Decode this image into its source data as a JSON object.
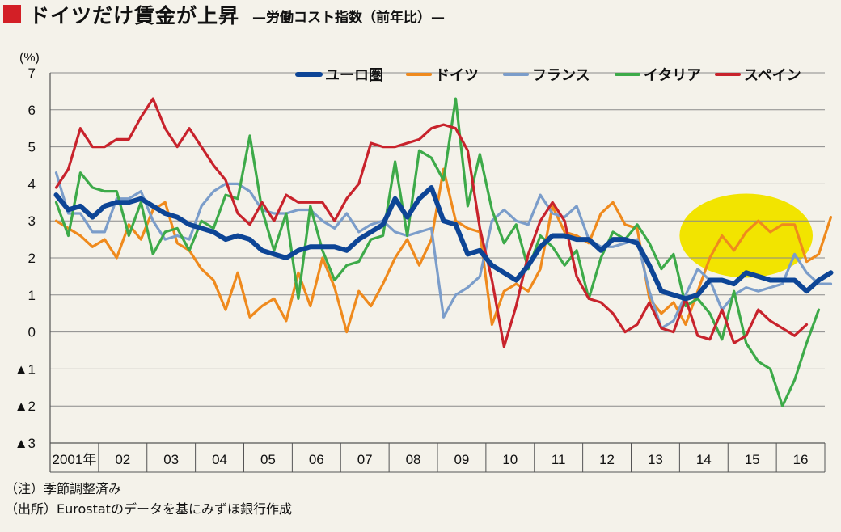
{
  "header": {
    "title": "ドイツだけ賃金が上昇",
    "subtitle": "—労働コスト指数（前年比）—"
  },
  "notes": [
    "（注）季節調整済み",
    "（出所）Eurostatのデータを基にみずほ銀行作成"
  ],
  "chart_data": {
    "type": "line",
    "y_unit_label": "(%)",
    "ylim": [
      -3,
      7
    ],
    "y_ticks": [
      {
        "value": 7,
        "label": "7"
      },
      {
        "value": 6,
        "label": "6"
      },
      {
        "value": 5,
        "label": "5"
      },
      {
        "value": 4,
        "label": "4"
      },
      {
        "value": 3,
        "label": "3"
      },
      {
        "value": 2,
        "label": "2"
      },
      {
        "value": 1,
        "label": "1"
      },
      {
        "value": 0,
        "label": "0"
      },
      {
        "value": -1,
        "label": "▲1"
      },
      {
        "value": -2,
        "label": "▲2"
      },
      {
        "value": -3,
        "label": "▲3"
      }
    ],
    "x_start": 2001,
    "points_per_year": 4,
    "x_tick_labels": [
      "2001年",
      "02",
      "03",
      "04",
      "05",
      "06",
      "07",
      "08",
      "09",
      "10",
      "11",
      "12",
      "13",
      "14",
      "15",
      "16"
    ],
    "legend_position": "top-right",
    "highlight_ellipse": {
      "x_from": 2014.0,
      "x_to": 2016.75,
      "y_center": 2.6,
      "color": "#f2e400"
    },
    "series": [
      {
        "name": "ユーロ圏",
        "color": "#0d4596",
        "values": [
          3.7,
          3.3,
          3.4,
          3.1,
          3.4,
          3.5,
          3.5,
          3.6,
          3.4,
          3.2,
          3.1,
          2.9,
          2.8,
          2.7,
          2.5,
          2.6,
          2.5,
          2.2,
          2.1,
          2.0,
          2.2,
          2.3,
          2.3,
          2.3,
          2.2,
          2.5,
          2.7,
          2.9,
          3.6,
          3.1,
          3.6,
          3.9,
          3.0,
          2.9,
          2.1,
          2.2,
          1.8,
          1.6,
          1.4,
          1.8,
          2.3,
          2.6,
          2.6,
          2.5,
          2.5,
          2.2,
          2.5,
          2.5,
          2.4,
          1.8,
          1.1,
          1.0,
          0.9,
          1.0,
          1.4,
          1.4,
          1.3,
          1.6,
          1.5,
          1.4,
          1.4,
          1.4,
          1.1,
          1.4,
          1.6
        ]
      },
      {
        "name": "ドイツ",
        "color": "#ef8a1d",
        "values": [
          3.0,
          2.8,
          2.6,
          2.3,
          2.5,
          2.0,
          2.9,
          2.5,
          3.3,
          3.5,
          2.4,
          2.2,
          1.7,
          1.4,
          0.6,
          1.6,
          0.4,
          0.7,
          0.9,
          0.3,
          1.6,
          0.7,
          2.0,
          1.2,
          0.0,
          1.1,
          0.7,
          1.3,
          2.0,
          2.5,
          1.8,
          2.5,
          4.4,
          3.0,
          2.8,
          2.7,
          0.2,
          1.1,
          1.3,
          1.1,
          1.7,
          3.4,
          2.7,
          2.6,
          2.4,
          3.2,
          3.5,
          2.9,
          2.8,
          0.9,
          0.5,
          0.8,
          0.2,
          1.1,
          2.0,
          2.6,
          2.2,
          2.7,
          3.0,
          2.7,
          2.9,
          2.9,
          1.9,
          2.1,
          3.1
        ]
      },
      {
        "name": "フランス",
        "color": "#7b9dca",
        "values": [
          4.3,
          3.2,
          3.2,
          2.7,
          2.7,
          3.6,
          3.6,
          3.8,
          3.0,
          2.5,
          2.6,
          2.5,
          3.4,
          3.8,
          4.0,
          4.0,
          3.8,
          3.3,
          3.2,
          3.2,
          3.3,
          3.3,
          3.0,
          2.8,
          3.2,
          2.7,
          2.9,
          3.0,
          2.7,
          2.6,
          2.7,
          2.8,
          0.4,
          1.0,
          1.2,
          1.5,
          3.0,
          3.3,
          3.0,
          2.9,
          3.7,
          3.2,
          3.1,
          3.4,
          2.5,
          2.3,
          2.3,
          2.4,
          2.5,
          1.1,
          0.1,
          0.3,
          1.0,
          1.7,
          1.4,
          0.6,
          1.0,
          1.2,
          1.1,
          1.2,
          1.3,
          2.1,
          1.6,
          1.3,
          1.3
        ]
      },
      {
        "name": "イタリア",
        "color": "#3daa49",
        "values": [
          3.5,
          2.6,
          4.3,
          3.9,
          3.8,
          3.8,
          2.6,
          3.5,
          2.1,
          2.7,
          2.8,
          2.2,
          3.0,
          2.8,
          3.7,
          3.6,
          5.3,
          3.3,
          2.2,
          3.2,
          0.9,
          3.4,
          2.2,
          1.4,
          1.8,
          1.9,
          2.5,
          2.6,
          4.6,
          2.6,
          4.9,
          4.7,
          4.1,
          6.3,
          3.4,
          4.8,
          3.3,
          2.4,
          2.9,
          1.7,
          2.6,
          2.3,
          1.8,
          2.2,
          0.9,
          2.0,
          2.7,
          2.5,
          2.9,
          2.4,
          1.7,
          2.1,
          0.7,
          0.9,
          0.5,
          -0.2,
          1.1,
          -0.3,
          -0.8,
          -1.0,
          -2.0,
          -1.3,
          -0.3,
          0.6
        ]
      },
      {
        "name": "スペイン",
        "color": "#c8232c",
        "values": [
          3.9,
          4.4,
          5.5,
          5.0,
          5.0,
          5.2,
          5.2,
          5.8,
          6.3,
          5.5,
          5.0,
          5.5,
          5.0,
          4.5,
          4.1,
          3.2,
          2.9,
          3.5,
          3.0,
          3.7,
          3.5,
          3.5,
          3.5,
          3.0,
          3.6,
          4.0,
          5.1,
          5.0,
          5.0,
          5.1,
          5.2,
          5.5,
          5.6,
          5.5,
          4.9,
          2.8,
          1.4,
          -0.4,
          0.7,
          2.1,
          3.0,
          3.5,
          3.0,
          1.5,
          0.9,
          0.8,
          0.5,
          0.0,
          0.2,
          0.8,
          0.1,
          0.0,
          0.9,
          -0.1,
          -0.2,
          0.6,
          -0.3,
          -0.1,
          0.6,
          0.3,
          0.1,
          -0.1,
          0.2
        ]
      }
    ]
  }
}
